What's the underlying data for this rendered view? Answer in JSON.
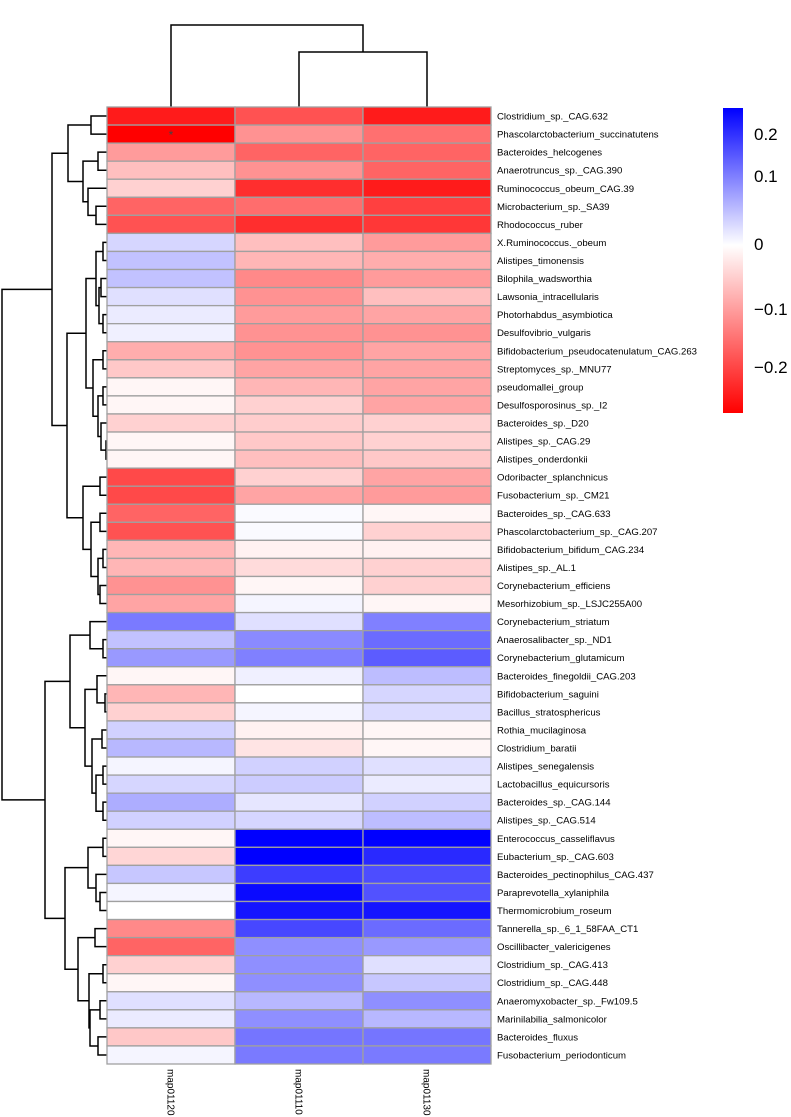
{
  "chart_data": {
    "type": "heatmap",
    "title": "",
    "columns": [
      "map01120",
      "map01110",
      "map01130"
    ],
    "rows": [
      "Clostridium_sp._CAG.632",
      "Phascolarctobacterium_succinatutens",
      "Bacteroides_helcogenes",
      "Anaerotruncus_sp._CAG.390",
      "Ruminococcus_obeum_CAG.39",
      "Microbacterium_sp._SA39",
      "Rhodococcus_ruber",
      "X.Ruminococcus._obeum",
      "Alistipes_timonensis",
      "Bilophila_wadsworthia",
      "Lawsonia_intracellularis",
      "Photorhabdus_asymbiotica",
      "Desulfovibrio_vulgaris",
      "Bifidobacterium_pseudocatenulatum_CAG.263",
      "Streptomyces_sp._MNU77",
      "pseudomallei_group",
      "Desulfosporosinus_sp._I2",
      "Bacteroides_sp._D20",
      "Alistipes_sp._CAG.29",
      "Alistipes_onderdonkii",
      "Odoribacter_splanchnicus",
      "Fusobacterium_sp._CM21",
      "Bacteroides_sp._CAG.633",
      "Phascolarctobacterium_sp._CAG.207",
      "Bifidobacterium_bifidum_CAG.234",
      "Alistipes_sp._AL.1",
      "Corynebacterium_efficiens",
      "Mesorhizobium_sp._LSJC255A00",
      "Corynebacterium_striatum",
      "Anaerosalibacter_sp._ND1",
      "Corynebacterium_glutamicum",
      "Bacteroides_finegoldii_CAG.203",
      "Bifidobacterium_saguini",
      "Bacillus_stratosphericus",
      "Rothia_mucilaginosa",
      "Clostridium_baratii",
      "Alistipes_senegalensis",
      "Lactobacillus_equicursoris",
      "Bacteroides_sp._CAG.144",
      "Alistipes_sp._CAG.514",
      "Enterococcus_casseliflavus",
      "Eubacterium_sp._CAG.603",
      "Bacteroides_pectinophilus_CAG.437",
      "Paraprevotella_xylaniphila",
      "Thermomicrobium_roseum",
      "Tannerella_sp._6_1_58FAA_CT1",
      "Oscillibacter_valericigenes",
      "Clostridium_sp._CAG.413",
      "Clostridium_sp._CAG.448",
      "Anaeromyxobacter_sp._Fw109.5",
      "Marinilabilia_salmonicolor",
      "Bacteroides_fluxus",
      "Fusobacterium_periodonticum"
    ],
    "values": [
      [
        -0.25,
        -0.19,
        -0.25
      ],
      [
        -0.28,
        -0.12,
        -0.157
      ],
      [
        -0.11,
        -0.17,
        -0.17
      ],
      [
        -0.07,
        -0.12,
        -0.17
      ],
      [
        -0.05,
        -0.23,
        -0.25
      ],
      [
        -0.17,
        -0.16,
        -0.21
      ],
      [
        -0.19,
        -0.23,
        -0.22
      ],
      [
        0.04,
        -0.07,
        -0.11
      ],
      [
        0.06,
        -0.08,
        -0.09
      ],
      [
        0.06,
        -0.13,
        -0.11
      ],
      [
        0.03,
        -0.12,
        -0.07
      ],
      [
        0.02,
        -0.11,
        -0.1
      ],
      [
        0.015,
        -0.12,
        -0.12
      ],
      [
        -0.09,
        -0.12,
        -0.1
      ],
      [
        -0.06,
        -0.1,
        -0.1
      ],
      [
        -0.01,
        -0.08,
        -0.1
      ],
      [
        -0.01,
        -0.05,
        -0.1
      ],
      [
        -0.05,
        -0.055,
        -0.05
      ],
      [
        -0.01,
        -0.06,
        -0.05
      ],
      [
        -0.01,
        -0.07,
        -0.06
      ],
      [
        -0.2,
        -0.05,
        -0.1
      ],
      [
        -0.2,
        -0.1,
        -0.11
      ],
      [
        -0.17,
        0.005,
        -0.01
      ],
      [
        -0.19,
        0.005,
        -0.05
      ],
      [
        -0.08,
        -0.015,
        -0.015
      ],
      [
        -0.08,
        -0.04,
        -0.05
      ],
      [
        -0.12,
        -0.01,
        -0.05
      ],
      [
        -0.1,
        0.01,
        -0.01
      ],
      [
        0.13,
        0.03,
        0.125
      ],
      [
        0.06,
        0.115,
        0.145
      ],
      [
        0.1,
        0.125,
        0.16
      ],
      [
        -0.01,
        0.015,
        0.065
      ],
      [
        -0.08,
        0.0,
        0.04
      ],
      [
        -0.05,
        0.01,
        0.035
      ],
      [
        0.045,
        -0.015,
        -0.01
      ],
      [
        0.07,
        -0.03,
        -0.01
      ],
      [
        0.01,
        0.045,
        0.03
      ],
      [
        0.04,
        0.05,
        0.02
      ],
      [
        0.08,
        0.025,
        0.045
      ],
      [
        0.045,
        0.04,
        0.065
      ],
      [
        -0.01,
        0.25,
        0.25
      ],
      [
        -0.045,
        0.25,
        0.21
      ],
      [
        0.055,
        0.19,
        0.175
      ],
      [
        0.01,
        0.24,
        0.17
      ],
      [
        0.0,
        0.23,
        0.23
      ],
      [
        -0.13,
        0.18,
        0.145
      ],
      [
        -0.17,
        0.11,
        0.1
      ],
      [
        -0.05,
        0.11,
        0.03
      ],
      [
        -0.01,
        0.11,
        0.055
      ],
      [
        0.03,
        0.07,
        0.11
      ],
      [
        0.02,
        0.11,
        0.07
      ],
      [
        -0.06,
        0.135,
        0.135
      ],
      [
        0.01,
        0.13,
        0.13
      ]
    ],
    "annotations": [
      {
        "row": "Phascolarctobacterium_succinatutens",
        "column": "map01120",
        "text": "*"
      }
    ],
    "color_scale": {
      "low": "#ff0000",
      "mid": "#ffffff",
      "high": "#0000ff",
      "vmin": -0.28,
      "vmax": 0.25
    },
    "legend": {
      "ticks": [
        "0.2",
        "0.1",
        "0",
        "−0.1",
        "−0.2"
      ],
      "placement": "right"
    },
    "cell_border_color": "#a0a0a0",
    "dendrogram_color": "#000000"
  }
}
